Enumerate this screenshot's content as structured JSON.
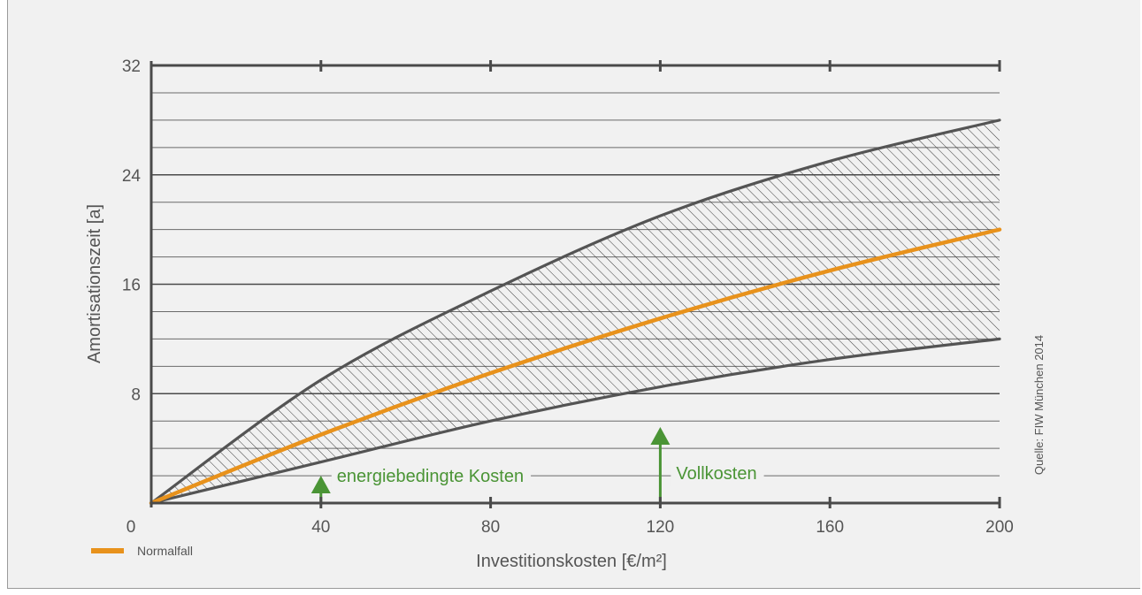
{
  "chart_data": {
    "type": "area",
    "xlabel": "Investitionskosten [€/m²]",
    "ylabel": "Amortisationszeit [a]",
    "xlim": [
      0,
      200
    ],
    "ylim": [
      0,
      32
    ],
    "x_ticks": [
      "0",
      "40",
      "80",
      "120",
      "160",
      "200"
    ],
    "y_ticks": [
      "0",
      "8",
      "16",
      "24",
      "32"
    ],
    "grid": true,
    "band": {
      "upper": {
        "x": [
          0,
          40,
          80,
          120,
          160,
          200
        ],
        "y": [
          0,
          9,
          15.5,
          21,
          25,
          28
        ]
      },
      "lower": {
        "x": [
          0,
          40,
          80,
          120,
          160,
          200
        ],
        "y": [
          0,
          3,
          6,
          8.5,
          10.5,
          12
        ]
      }
    },
    "series": [
      {
        "name": "Normalfall",
        "x": [
          0,
          40,
          80,
          120,
          160,
          200
        ],
        "y": [
          0,
          5,
          9.5,
          13.5,
          17,
          20
        ],
        "color": "#e8921c"
      }
    ],
    "markers": [
      {
        "label": "energiebedingte Kosten",
        "x": 40,
        "color": "#4a9435"
      },
      {
        "label": "Vollkosten",
        "x": 120,
        "color": "#4a9435"
      }
    ],
    "legend": {
      "placement": "bottom-left",
      "items": [
        "Normalfall"
      ]
    },
    "source": "Quelle: FIW München 2014"
  }
}
